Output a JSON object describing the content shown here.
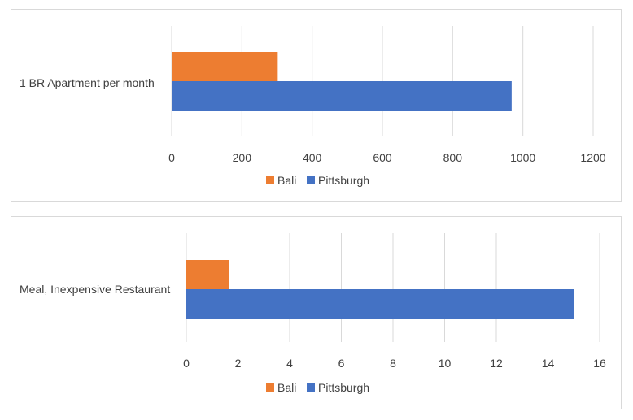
{
  "chart_data": [
    {
      "type": "bar",
      "orientation": "horizontal",
      "categories": [
        "1 BR Apartment per month"
      ],
      "series": [
        {
          "name": "Bali",
          "values": [
            302
          ],
          "color": "#ed7d31"
        },
        {
          "name": "Pittsburgh",
          "values": [
            968
          ],
          "color": "#4472c4"
        }
      ],
      "xlim": [
        0,
        1200
      ],
      "xticks": [
        0,
        200,
        400,
        600,
        800,
        1000,
        1200
      ],
      "tick_labels": [
        "0",
        "200",
        "400",
        "600",
        "800",
        "1000",
        "1200"
      ],
      "grid": true,
      "legend_position": "bottom",
      "title": "",
      "xlabel": "",
      "ylabel": ""
    },
    {
      "type": "bar",
      "orientation": "horizontal",
      "categories": [
        "Meal, Inexpensive Restaurant"
      ],
      "series": [
        {
          "name": "Bali",
          "values": [
            1.65
          ],
          "color": "#ed7d31"
        },
        {
          "name": "Pittsburgh",
          "values": [
            15
          ],
          "color": "#4472c4"
        }
      ],
      "xlim": [
        0,
        16
      ],
      "xticks": [
        0,
        2,
        4,
        6,
        8,
        10,
        12,
        14,
        16
      ],
      "tick_labels": [
        "0",
        "2",
        "4",
        "6",
        "8",
        "10",
        "12",
        "14",
        "16"
      ],
      "grid": true,
      "legend_position": "bottom",
      "title": "",
      "xlabel": "",
      "ylabel": ""
    }
  ]
}
